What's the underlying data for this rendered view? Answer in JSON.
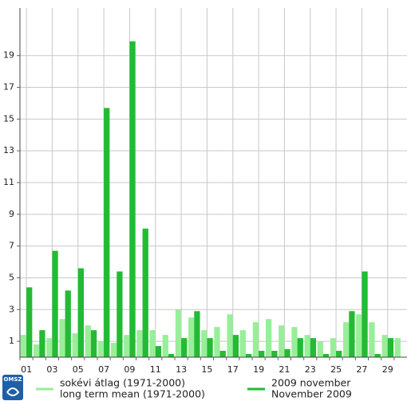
{
  "chart_data": {
    "type": "bar",
    "categories": [
      "01",
      null,
      "03",
      null,
      "05",
      null,
      "07",
      null,
      "09",
      null,
      "11",
      null,
      "13",
      null,
      "15",
      null,
      "17",
      null,
      "19",
      null,
      "21",
      null,
      "23",
      null,
      "25",
      null,
      "27",
      null,
      "29",
      null
    ],
    "series": [
      {
        "name": "sokévi átlag (1971-2000)",
        "name_en": "long term mean (1971-2000)",
        "color": "#99ee99",
        "values": [
          1.4,
          0.8,
          1.2,
          2.4,
          1.5,
          2.0,
          1.0,
          0.9,
          1.4,
          1.7,
          1.7,
          1.4,
          3.0,
          2.5,
          1.7,
          1.9,
          2.7,
          1.7,
          2.2,
          2.4,
          2.0,
          1.9,
          1.4,
          1.0,
          1.2,
          2.2,
          2.7,
          2.2,
          1.4,
          1.2
        ]
      },
      {
        "name": "2009 november",
        "name_en": "November 2009",
        "color": "#22bb33",
        "values": [
          4.4,
          1.7,
          6.7,
          4.2,
          5.6,
          1.7,
          15.7,
          5.4,
          19.9,
          8.1,
          0.7,
          0.2,
          1.2,
          2.9,
          1.2,
          0.4,
          1.4,
          0.2,
          0.4,
          0.4,
          0.5,
          1.2,
          1.2,
          0.2,
          0.4,
          2.9,
          5.4,
          0.2,
          1.2,
          null
        ]
      }
    ],
    "ylim": [
      0,
      22
    ],
    "yticks": [
      1,
      3,
      5,
      7,
      9,
      11,
      13,
      15,
      17,
      19
    ],
    "grid": true,
    "logo": "OMSZ"
  }
}
